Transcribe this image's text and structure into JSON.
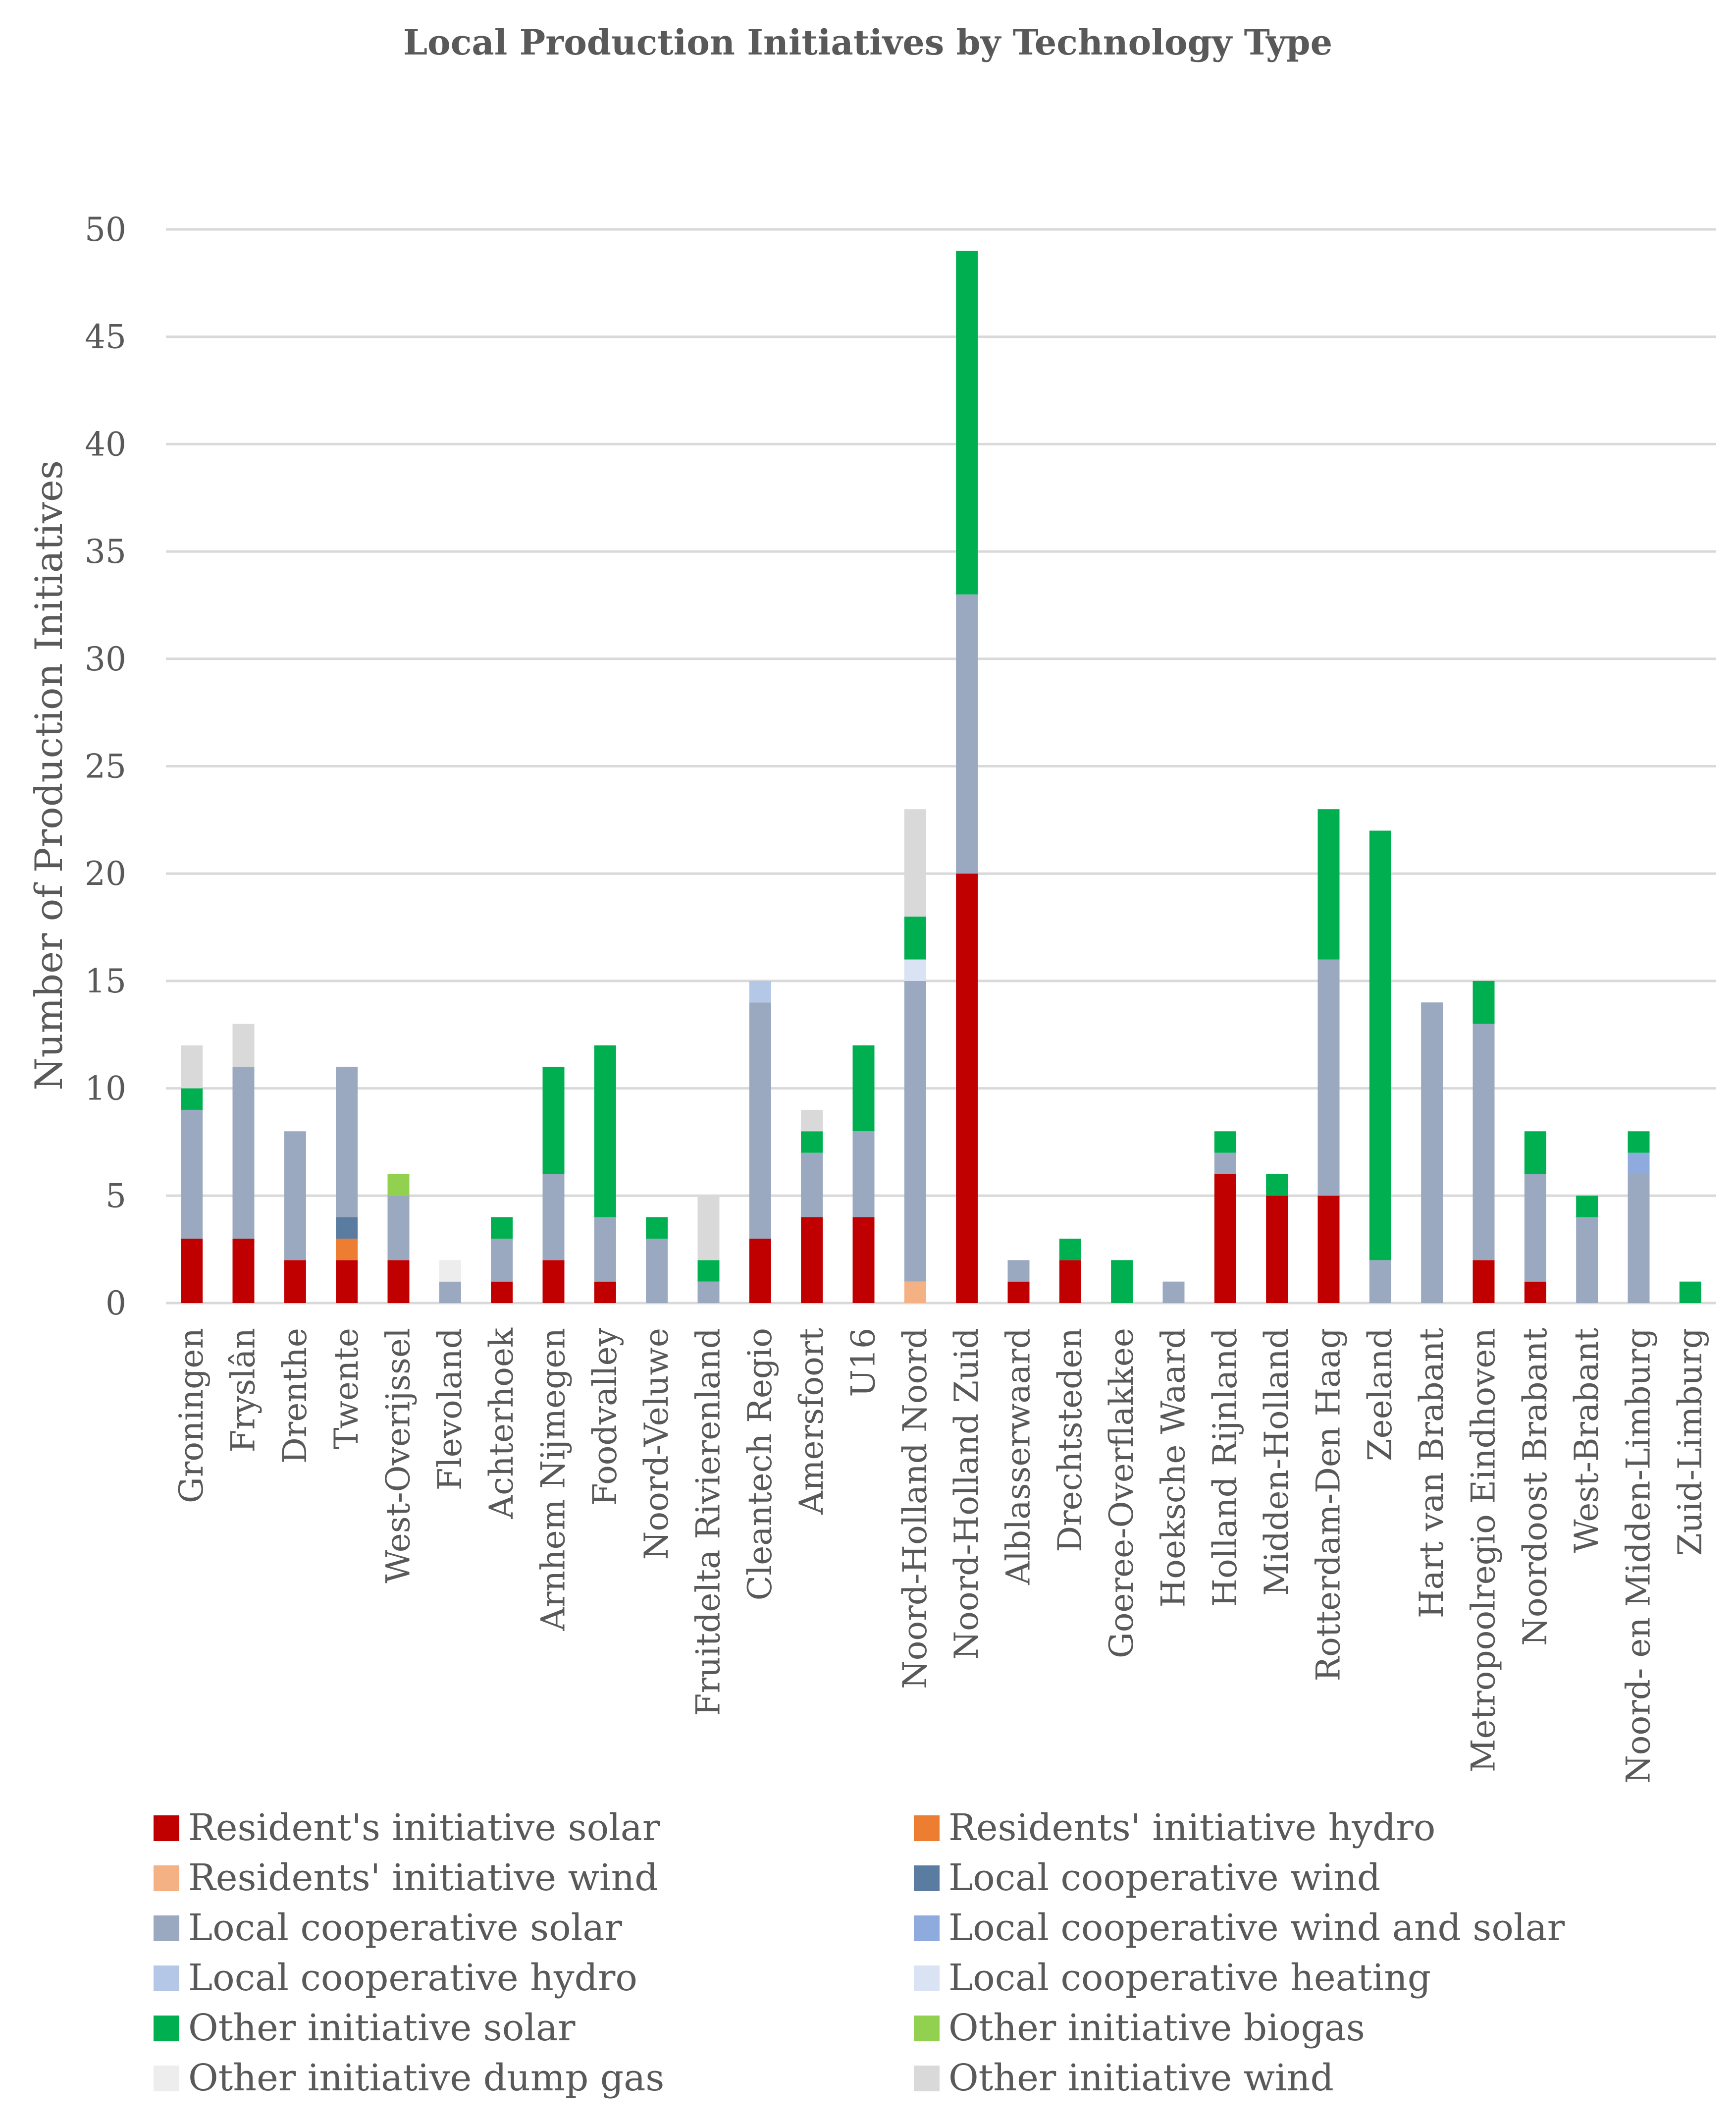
{
  "chart_data": {
    "type": "bar",
    "stacked": true,
    "title": "Local Production Initiatives by Technology Type",
    "ylabel": "Number of Production Initiatives",
    "xlabel": "",
    "ylim": [
      0,
      50
    ],
    "yticks": [
      0,
      5,
      10,
      15,
      20,
      25,
      30,
      35,
      40,
      45,
      50
    ],
    "grid": "horizontal",
    "legend_position": "bottom",
    "categories": [
      "Groningen",
      "Fryslân",
      "Drenthe",
      "Twente",
      "West-Overijssel",
      "Flevoland",
      "Achterhoek",
      "Arnhem Nijmegen",
      "Foodvalley",
      "Noord-Veluwe",
      "Fruitdelta Rivierenland",
      "Cleantech Regio",
      "Amersfoort",
      "U16",
      "Noord-Holland Noord",
      "Noord-Holland Zuid",
      "Alblasserwaard",
      "Drechtsteden",
      "Goeree-Overflakkee",
      "Hoeksche Waard",
      "Holland Rijnland",
      "Midden-Holland",
      "Rotterdam-Den Haag",
      "Zeeland",
      "Hart van Brabant",
      "Metropoolregio Eindhoven",
      "Noordoost Brabant",
      "West-Brabant",
      "Noord- en Midden-Limburg",
      "Zuid-Limburg"
    ],
    "series": [
      {
        "name": "Resident's initiative solar",
        "color": "#c00000",
        "values": [
          3,
          3,
          2,
          2,
          2,
          0,
          1,
          2,
          1,
          0,
          0,
          3,
          4,
          4,
          0,
          20,
          1,
          2,
          0,
          0,
          6,
          5,
          5,
          0,
          0,
          2,
          1,
          0,
          0,
          0
        ]
      },
      {
        "name": "Residents' initiative hydro",
        "color": "#ed7d31",
        "values": [
          0,
          0,
          0,
          1,
          0,
          0,
          0,
          0,
          0,
          0,
          0,
          0,
          0,
          0,
          0,
          0,
          0,
          0,
          0,
          0,
          0,
          0,
          0,
          0,
          0,
          0,
          0,
          0,
          0,
          0
        ]
      },
      {
        "name": "Residents' initiative wind",
        "color": "#f4b183",
        "values": [
          0,
          0,
          0,
          0,
          0,
          0,
          0,
          0,
          0,
          0,
          0,
          0,
          0,
          0,
          1,
          0,
          0,
          0,
          0,
          0,
          0,
          0,
          0,
          0,
          0,
          0,
          0,
          0,
          0,
          0
        ]
      },
      {
        "name": "Local cooperative wind",
        "color": "#5a7ca0",
        "values": [
          0,
          0,
          0,
          1,
          0,
          0,
          0,
          0,
          0,
          0,
          0,
          0,
          0,
          0,
          0,
          0,
          0,
          0,
          0,
          0,
          0,
          0,
          0,
          0,
          0,
          0,
          0,
          0,
          0,
          0
        ]
      },
      {
        "name": "Local cooperative solar",
        "color": "#9aa9bf",
        "values": [
          6,
          8,
          6,
          7,
          3,
          1,
          2,
          4,
          3,
          3,
          1,
          11,
          3,
          4,
          14,
          13,
          1,
          0,
          0,
          1,
          1,
          0,
          11,
          2,
          14,
          11,
          5,
          4,
          6,
          0
        ]
      },
      {
        "name": "Local cooperative wind and solar",
        "color": "#8faadc",
        "values": [
          0,
          0,
          0,
          0,
          0,
          0,
          0,
          0,
          0,
          0,
          0,
          0,
          0,
          0,
          0,
          0,
          0,
          0,
          0,
          0,
          0,
          0,
          0,
          0,
          0,
          0,
          0,
          0,
          1,
          0
        ]
      },
      {
        "name": "Local cooperative hydro",
        "color": "#b4c7e7",
        "values": [
          0,
          0,
          0,
          0,
          0,
          0,
          0,
          0,
          0,
          0,
          0,
          1,
          0,
          0,
          0,
          0,
          0,
          0,
          0,
          0,
          0,
          0,
          0,
          0,
          0,
          0,
          0,
          0,
          0,
          0
        ]
      },
      {
        "name": "Local cooperative heating",
        "color": "#dae3f3",
        "values": [
          0,
          0,
          0,
          0,
          0,
          0,
          0,
          0,
          0,
          0,
          0,
          0,
          0,
          0,
          1,
          0,
          0,
          0,
          0,
          0,
          0,
          0,
          0,
          0,
          0,
          0,
          0,
          0,
          0,
          0
        ]
      },
      {
        "name": "Other initiative solar",
        "color": "#00b050",
        "values": [
          1,
          0,
          0,
          0,
          0,
          0,
          1,
          5,
          8,
          1,
          1,
          0,
          1,
          4,
          2,
          16,
          0,
          1,
          2,
          0,
          1,
          1,
          7,
          20,
          0,
          2,
          2,
          1,
          1,
          1
        ]
      },
      {
        "name": "Other initiative biogas",
        "color": "#92d050",
        "values": [
          0,
          0,
          0,
          0,
          1,
          0,
          0,
          0,
          0,
          0,
          0,
          0,
          0,
          0,
          0,
          0,
          0,
          0,
          0,
          0,
          0,
          0,
          0,
          0,
          0,
          0,
          0,
          0,
          0,
          0
        ]
      },
      {
        "name": "Other initiative dump gas",
        "color": "#ededed",
        "values": [
          0,
          0,
          0,
          0,
          0,
          1,
          0,
          0,
          0,
          0,
          0,
          0,
          0,
          0,
          0,
          0,
          0,
          0,
          0,
          0,
          0,
          0,
          0,
          0,
          0,
          0,
          0,
          0,
          0,
          0
        ]
      },
      {
        "name": "Other initiative wind",
        "color": "#d9d9d9",
        "values": [
          2,
          2,
          0,
          0,
          0,
          0,
          0,
          0,
          0,
          0,
          3,
          0,
          1,
          0,
          5,
          0,
          0,
          0,
          0,
          0,
          0,
          0,
          0,
          0,
          0,
          0,
          0,
          0,
          0,
          0
        ]
      }
    ],
    "legend": [
      [
        "Resident's initiative solar",
        "Residents' initiative hydro"
      ],
      [
        "Residents' initiative wind",
        "Local cooperative wind"
      ],
      [
        "Local cooperative solar",
        "Local cooperative wind and solar"
      ],
      [
        "Local cooperative hydro",
        "Local cooperative heating"
      ],
      [
        "Other initiative solar",
        "Other initiative biogas"
      ],
      [
        "Other initiative dump gas",
        "Other initiative wind"
      ]
    ],
    "colors": {
      "gridline": "#d9d9d9",
      "text": "#595959"
    }
  }
}
